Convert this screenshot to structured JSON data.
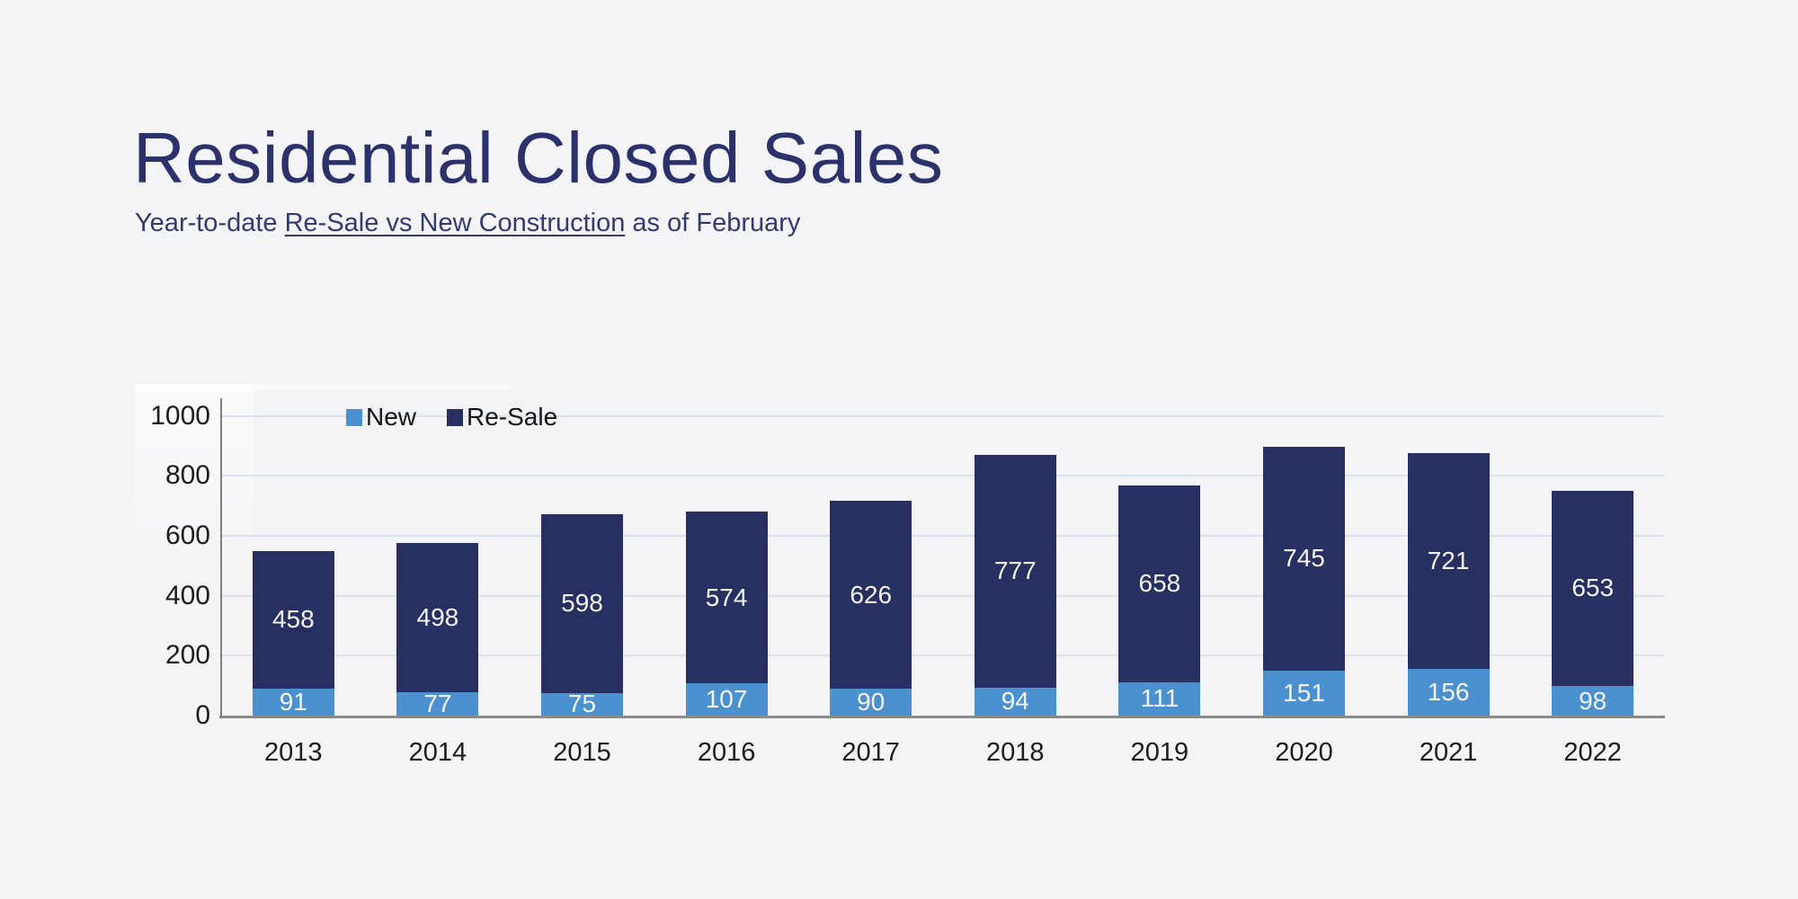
{
  "header": {
    "title": "Residential Closed Sales",
    "subtitle_prefix": "Year-to-date ",
    "subtitle_underlined": "Re-Sale vs New Construction",
    "subtitle_suffix": " as of February"
  },
  "colors": {
    "background": "#f4f4f6",
    "title_text": "#2b326b",
    "axis_line": "#8a8a8a",
    "gridline": "#dbe2ef",
    "tick_text": "#1c1c1c",
    "bar_value_text": "#f4f4f4"
  },
  "chart_data": {
    "type": "bar",
    "stacked": true,
    "title": "Residential Closed Sales",
    "subtitle": "Year-to-date Re-Sale vs New Construction as of February",
    "categories": [
      "2013",
      "2014",
      "2015",
      "2016",
      "2017",
      "2018",
      "2019",
      "2020",
      "2021",
      "2022"
    ],
    "series": [
      {
        "name": "New",
        "color": "#4b91d0",
        "values": [
          91,
          77,
          75,
          107,
          90,
          94,
          111,
          151,
          156,
          98
        ]
      },
      {
        "name": "Re-Sale",
        "color": "#273060",
        "values": [
          458,
          498,
          598,
          574,
          626,
          777,
          658,
          745,
          721,
          653
        ]
      }
    ],
    "ylim": [
      0,
      1000
    ],
    "yticks": [
      0,
      200,
      400,
      600,
      800,
      1000
    ],
    "grid": true,
    "legend_position": "top-left-inside",
    "value_labels": "inside-segment"
  }
}
